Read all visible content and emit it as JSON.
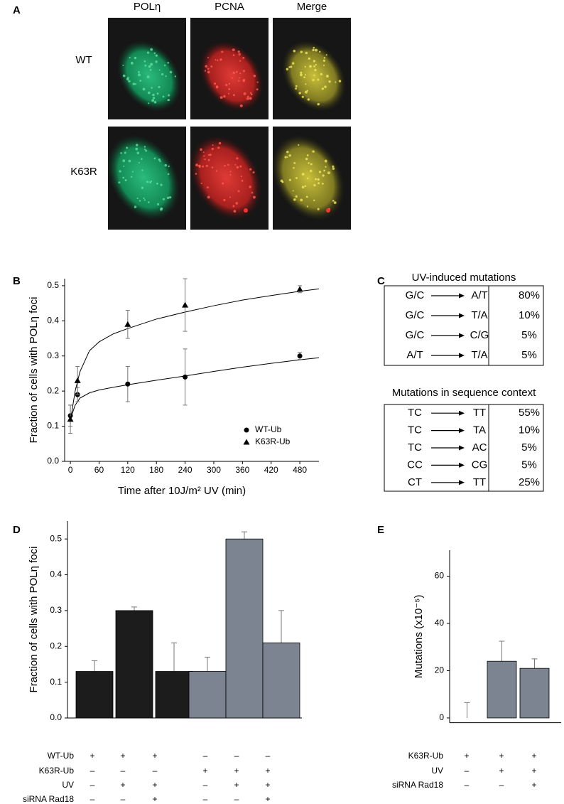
{
  "panels": {
    "a": "A",
    "b": "B",
    "c": "C",
    "d": "D",
    "e": "E"
  },
  "imaging": {
    "columns": [
      "POLη",
      "PCNA",
      "Merge"
    ],
    "rows": [
      "WT",
      "K63R"
    ]
  },
  "mutation_tables": [
    {
      "title": "UV-induced mutations",
      "rows": [
        {
          "from": "G/C",
          "to": "A/T",
          "percent": "80%"
        },
        {
          "from": "G/C",
          "to": "T/A",
          "percent": "10%"
        },
        {
          "from": "G/C",
          "to": "C/G",
          "percent": "5%"
        },
        {
          "from": "A/T",
          "to": "T/A",
          "percent": "5%"
        }
      ]
    },
    {
      "title": "Mutations in sequence context",
      "rows": [
        {
          "from": "TC",
          "to": "TT",
          "percent": "55%"
        },
        {
          "from": "TC",
          "to": "TA",
          "percent": "10%"
        },
        {
          "from": "TC",
          "to": "AC",
          "percent": "5%"
        },
        {
          "from": "CC",
          "to": "CG",
          "percent": "5%"
        },
        {
          "from": "CT",
          "to": "TT",
          "percent": "25%"
        }
      ]
    }
  ],
  "chart_data": [
    {
      "type": "scatter",
      "y_label": "Fraction of cells with POLη foci",
      "x_label": "Time after 10J/m² UV (min)",
      "xlim": [
        -12,
        520
      ],
      "ylim": [
        0,
        0.52
      ],
      "xticks": [
        0,
        60,
        120,
        180,
        240,
        300,
        360,
        420,
        480
      ],
      "yticks": [
        {
          "value": 0,
          "label": "0.0"
        },
        0.1,
        0.2,
        0.3,
        0.4,
        0.5
      ],
      "x": [
        0,
        15,
        120,
        240,
        480
      ],
      "legend": "lower right",
      "fit_x": [
        0,
        10,
        20,
        40,
        60,
        90,
        120,
        180,
        240,
        300,
        360,
        420,
        480,
        520
      ],
      "series": [
        {
          "name": "WT-Ub",
          "marker": "circle",
          "color": "#000000",
          "values": [
            0.13,
            0.19,
            0.22,
            0.24,
            0.3
          ],
          "errors": [
            0.03,
            0.02,
            0.05,
            0.08,
            0.01
          ],
          "fit": [
            0.12,
            0.16,
            0.18,
            0.195,
            0.203,
            0.211,
            0.218,
            0.231,
            0.243,
            0.256,
            0.268,
            0.279,
            0.289,
            0.295
          ]
        },
        {
          "name": "K63R-Ub",
          "marker": "triangle",
          "color": "#000000",
          "values": [
            0.12,
            0.23,
            0.39,
            0.445,
            0.49
          ],
          "errors": [
            0.04,
            0.04,
            0.04,
            0.075,
            0.01
          ],
          "fit": [
            0.115,
            0.2,
            0.255,
            0.315,
            0.34,
            0.363,
            0.378,
            0.405,
            0.425,
            0.443,
            0.459,
            0.472,
            0.484,
            0.491
          ]
        }
      ]
    },
    {
      "type": "bar",
      "y_label": "Fraction of cells with POLη foci",
      "ylim": [
        0,
        0.55
      ],
      "yticks": [
        {
          "value": 0,
          "label": "0.0"
        },
        0.1,
        0.2,
        0.3,
        0.4,
        0.5
      ],
      "values": [
        0.13,
        0.3,
        0.13,
        0.13,
        0.5,
        0.21
      ],
      "errors": [
        0.03,
        0.01,
        0.08,
        0.04,
        0.02,
        0.09
      ],
      "colors": [
        "#1c1c1c",
        "#1c1c1c",
        "#1c1c1c",
        "#7b8490",
        "#7b8490",
        "#7b8490"
      ],
      "conditions": [
        {
          "name": "WT-Ub",
          "signs": [
            "+",
            "+",
            "+",
            "–",
            "–",
            "–"
          ]
        },
        {
          "name": "K63R-Ub",
          "signs": [
            "–",
            "–",
            "–",
            "+",
            "+",
            "+"
          ]
        },
        {
          "name": "UV",
          "signs": [
            "–",
            "+",
            "+",
            "–",
            "+",
            "+"
          ]
        },
        {
          "name": "siRNA Rad18",
          "signs": [
            "–",
            "–",
            "+",
            "–",
            "–",
            "+"
          ]
        }
      ]
    },
    {
      "type": "bar",
      "y_label": "Mutations (x10⁻⁵)",
      "ylim": [
        -2,
        71
      ],
      "yticks": [
        0,
        20,
        40,
        60
      ],
      "values": [
        0,
        24,
        21
      ],
      "errors": [
        6.5,
        8.5,
        4
      ],
      "colors": [
        "#7b8490",
        "#7b8490",
        "#7b8490"
      ],
      "conditions": [
        {
          "name": "K63R-Ub",
          "signs": [
            "+",
            "+",
            "+"
          ]
        },
        {
          "name": "UV",
          "signs": [
            "–",
            "+",
            "+"
          ]
        },
        {
          "name": "siRNA Rad18",
          "signs": [
            "–",
            "–",
            "+"
          ]
        }
      ]
    }
  ]
}
